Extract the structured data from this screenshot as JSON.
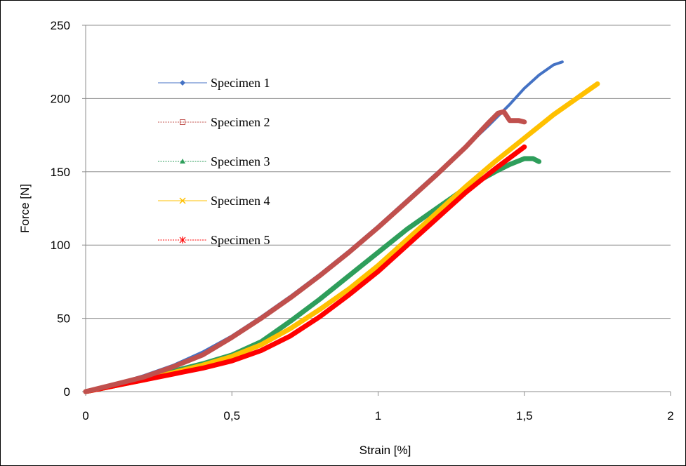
{
  "chart_data": {
    "type": "line",
    "title": "",
    "xlabel": "Strain [%]",
    "ylabel": "Force [N]",
    "xlim": [
      0,
      2
    ],
    "ylim": [
      0,
      250
    ],
    "x_ticks": [
      0,
      0.5,
      1,
      1.5,
      2
    ],
    "x_tick_labels": [
      "0",
      "0,5",
      "1",
      "1,5",
      "2"
    ],
    "y_ticks": [
      0,
      50,
      100,
      150,
      200,
      250
    ],
    "y_tick_labels": [
      "0",
      "50",
      "100",
      "150",
      "200",
      "250"
    ],
    "grid": "horizontal",
    "legend_position": "top-left",
    "series": [
      {
        "name": "Specimen 1",
        "color": "#4472C4",
        "marker": "diamond",
        "x": [
          0,
          0.1,
          0.2,
          0.3,
          0.4,
          0.5,
          0.6,
          0.7,
          0.8,
          0.9,
          1.0,
          1.1,
          1.2,
          1.3,
          1.38,
          1.45,
          1.5,
          1.55,
          1.6,
          1.63
        ],
        "y": [
          0,
          5,
          11,
          18,
          27,
          38,
          51,
          65,
          80,
          96,
          113,
          131,
          149,
          167,
          182,
          196,
          207,
          216,
          223,
          225
        ]
      },
      {
        "name": "Specimen 2",
        "color": "#C0504D",
        "marker": "square",
        "x": [
          0,
          0.1,
          0.2,
          0.3,
          0.4,
          0.5,
          0.6,
          0.7,
          0.8,
          0.9,
          1.0,
          1.1,
          1.2,
          1.3,
          1.38,
          1.41,
          1.43,
          1.45,
          1.48,
          1.5
        ],
        "y": [
          0,
          5,
          10,
          17,
          25,
          37,
          50,
          64,
          79,
          95,
          112,
          130,
          148,
          167,
          184,
          190,
          191,
          185,
          185,
          184
        ]
      },
      {
        "name": "Specimen 3",
        "color": "#2E9E5B",
        "marker": "triangle",
        "x": [
          0,
          0.1,
          0.2,
          0.3,
          0.4,
          0.5,
          0.6,
          0.7,
          0.8,
          0.9,
          1.0,
          1.1,
          1.2,
          1.3,
          1.4,
          1.45,
          1.5,
          1.53,
          1.55
        ],
        "y": [
          0,
          4,
          9,
          14,
          19,
          25,
          34,
          48,
          63,
          79,
          95,
          111,
          125,
          139,
          150,
          155,
          159,
          159,
          157
        ]
      },
      {
        "name": "Specimen 4",
        "color": "#FFC000",
        "marker": "x",
        "x": [
          0,
          0.1,
          0.2,
          0.3,
          0.4,
          0.5,
          0.6,
          0.7,
          0.8,
          0.9,
          1.0,
          1.1,
          1.2,
          1.3,
          1.4,
          1.5,
          1.6,
          1.7,
          1.75
        ],
        "y": [
          0,
          4,
          8,
          13,
          18,
          24,
          32,
          43,
          56,
          70,
          86,
          104,
          122,
          140,
          157,
          173,
          189,
          203,
          210
        ]
      },
      {
        "name": "Specimen 5",
        "color": "#FF0000",
        "marker": "star",
        "x": [
          0,
          0.1,
          0.2,
          0.3,
          0.4,
          0.5,
          0.6,
          0.7,
          0.8,
          0.9,
          1.0,
          1.1,
          1.2,
          1.3,
          1.4,
          1.5
        ],
        "y": [
          0,
          4,
          8,
          12,
          16,
          21,
          28,
          38,
          51,
          66,
          82,
          100,
          118,
          136,
          152,
          167
        ]
      }
    ]
  }
}
